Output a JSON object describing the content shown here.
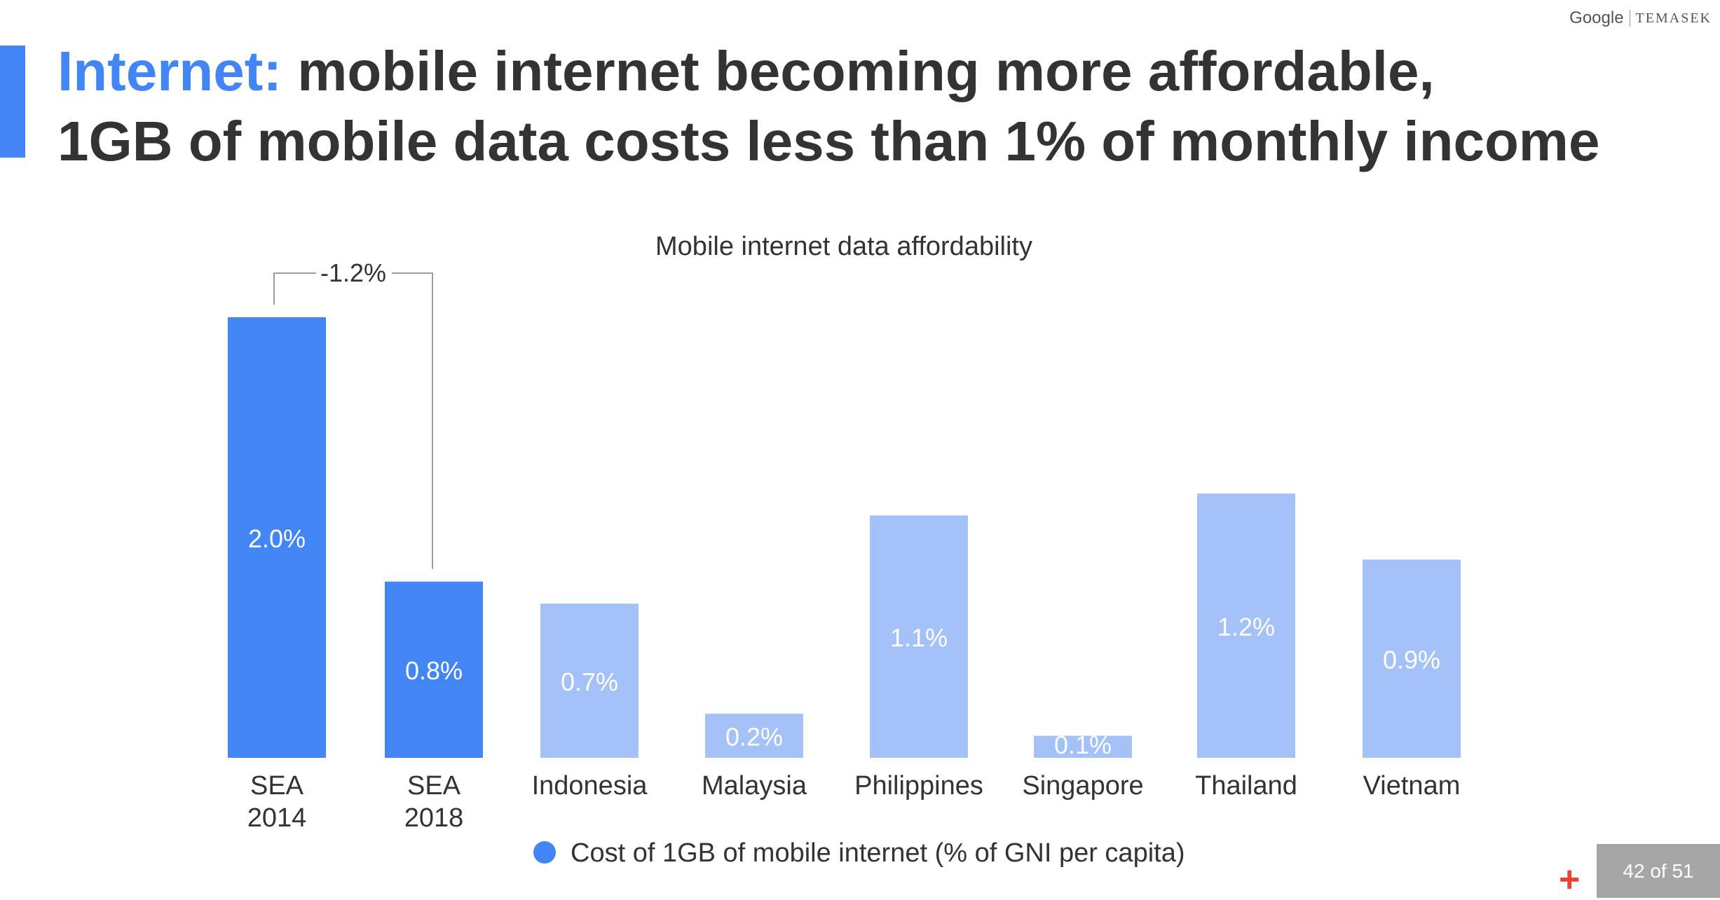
{
  "brand": {
    "google": "Google",
    "temasek": "TEMASEK"
  },
  "headline": {
    "accent": "Internet:",
    "line1_rest": "mobile internet becoming more affordable,",
    "line2": "1GB of mobile data costs less than 1% of monthly income"
  },
  "colors": {
    "accent": "#4285f4",
    "highlight_bar": "#4285f4",
    "country_bar": "#a4c2f7",
    "text": "#333333"
  },
  "chart_data": {
    "type": "bar",
    "title": "Mobile internet data affordability",
    "categories": [
      [
        "SEA",
        "2014"
      ],
      [
        "SEA",
        "2018"
      ],
      [
        "Indonesia"
      ],
      [
        "Malaysia"
      ],
      [
        "Philippines"
      ],
      [
        "Singapore"
      ],
      [
        "Thailand"
      ],
      [
        "Vietnam"
      ]
    ],
    "series": [
      {
        "name": "Cost of 1GB of mobile internet (% of GNI per capita)",
        "values": [
          2.0,
          0.8,
          0.7,
          0.2,
          1.1,
          0.1,
          1.2,
          0.9
        ]
      }
    ],
    "value_labels": [
      "2.0%",
      "0.8%",
      "0.7%",
      "0.2%",
      "1.1%",
      "0.1%",
      "1.2%",
      "0.9%"
    ],
    "highlighted": [
      true,
      true,
      false,
      false,
      false,
      false,
      false,
      false
    ],
    "annotation": {
      "text": "-1.2%",
      "from": 0,
      "to": 1
    },
    "legend": "Cost of 1GB of mobile internet (% of GNI per capita)",
    "legend_placement": "bottom",
    "xlabel": "",
    "ylabel": "",
    "ylim": [
      0,
      2.0
    ],
    "grid": false
  },
  "page_indicator": "42 of 51",
  "icons": {
    "plus": "+"
  }
}
